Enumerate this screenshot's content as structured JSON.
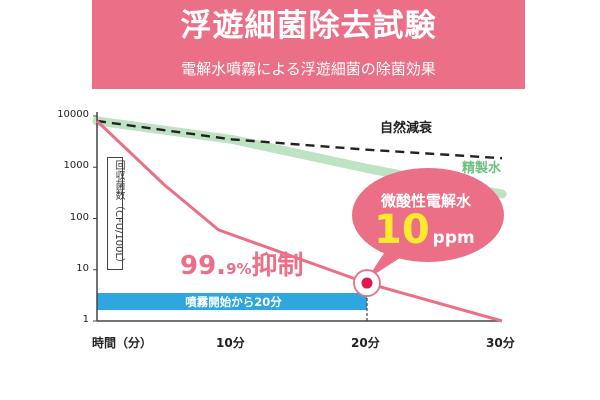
{
  "header": {
    "title": "浮遊細菌除去試験",
    "subtitle": "電解水噴霧による浮遊細菌の除菌効果"
  },
  "colors": {
    "header_bg": "#eb6f86",
    "accent_pink": "#eb6f86",
    "purified_green": "#bfe3c2",
    "spray_bar": "#2ea6e0",
    "callout_yellow": "#ffea2e"
  },
  "chart_data": {
    "type": "line",
    "title": "浮遊細菌除去試験",
    "subtitle": "電解水噴霧による浮遊細菌の除菌効果",
    "ylabel": "回収菌数（CFU/100L）",
    "xlabel": "時間（分）",
    "y_scale": "log",
    "ylim": [
      1,
      10000
    ],
    "y_ticks": [
      "10000",
      "1000",
      "100",
      "10",
      "1"
    ],
    "x_ticks": [
      {
        "value": 10,
        "label": "10分"
      },
      {
        "value": 20,
        "label": "20分"
      },
      {
        "value": 30,
        "label": "30分"
      }
    ],
    "x_range": [
      0,
      30
    ],
    "series": [
      {
        "name": "自然減衰",
        "style": "dashed",
        "color": "#222222",
        "points": [
          [
            0,
            8000
          ],
          [
            10,
            3500
          ],
          [
            20,
            2200
          ],
          [
            30,
            1500
          ]
        ]
      },
      {
        "name": "精製水",
        "style": "band",
        "color": "#bfe3c2",
        "points": [
          [
            0,
            8000
          ],
          [
            10,
            3500
          ],
          [
            20,
            950
          ],
          [
            30,
            300
          ]
        ]
      },
      {
        "name": "微酸性電解水 10ppm",
        "style": "solid",
        "color": "#eb6f86",
        "points": [
          [
            0,
            8000
          ],
          [
            5,
            450
          ],
          [
            9,
            60
          ],
          [
            20,
            5.5
          ],
          [
            30,
            1
          ]
        ]
      }
    ],
    "spray_period": {
      "start": 0,
      "end": 20,
      "label": "噴霧開始から20分"
    },
    "highlight_point": {
      "x": 20,
      "y": 5.5
    },
    "annotations": {
      "suppression_main": "99.",
      "suppression_small": "9%",
      "suppression_tail": "抑制",
      "callout_line1": "微酸性電解水",
      "callout_value": "10",
      "callout_unit": "ppm"
    }
  }
}
